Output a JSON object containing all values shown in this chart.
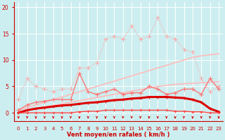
{
  "x": [
    0,
    1,
    2,
    3,
    4,
    5,
    6,
    7,
    8,
    9,
    10,
    11,
    12,
    13,
    14,
    15,
    16,
    17,
    18,
    19,
    20,
    21,
    22,
    23
  ],
  "series": [
    {
      "name": "max_gust_dotted",
      "y": [
        2.5,
        6.5,
        5.0,
        4.5,
        4.0,
        4.5,
        4.5,
        8.5,
        8.5,
        9.5,
        14.0,
        14.5,
        14.0,
        16.5,
        14.0,
        14.5,
        18.0,
        14.5,
        14.0,
        12.0,
        11.5,
        6.5,
        4.0,
        5.0
      ],
      "color": "#ffaaaa",
      "linewidth": 1.0,
      "marker": "+",
      "markersize": 4,
      "linestyle": ":"
    },
    {
      "name": "upper_envelope_smooth",
      "y": [
        0.5,
        1.0,
        1.5,
        2.0,
        2.5,
        3.0,
        3.5,
        4.0,
        4.5,
        5.0,
        5.5,
        6.0,
        6.5,
        7.0,
        7.5,
        8.0,
        8.5,
        9.0,
        9.5,
        10.0,
        10.5,
        10.8,
        11.0,
        11.2
      ],
      "color": "#ffbbbb",
      "linewidth": 1.2,
      "marker": null,
      "linestyle": "-"
    },
    {
      "name": "lower_envelope_smooth",
      "y": [
        0.2,
        0.5,
        0.8,
        1.1,
        1.4,
        1.7,
        2.0,
        2.3,
        2.6,
        2.9,
        3.2,
        3.5,
        3.8,
        4.1,
        4.4,
        4.7,
        5.0,
        5.2,
        5.4,
        5.5,
        5.6,
        5.7,
        5.8,
        5.9
      ],
      "color": "#ffbbbb",
      "linewidth": 1.2,
      "marker": null,
      "linestyle": "-"
    },
    {
      "name": "mean_gust_with_markers",
      "y": [
        0.5,
        1.5,
        2.0,
        2.2,
        2.5,
        2.5,
        2.5,
        7.5,
        4.0,
        3.5,
        4.0,
        4.5,
        3.5,
        3.8,
        3.8,
        5.0,
        4.5,
        3.5,
        3.8,
        4.5,
        4.5,
        3.5,
        6.5,
        4.5
      ],
      "color": "#ff7777",
      "linewidth": 1.0,
      "marker": "+",
      "markersize": 4,
      "linestyle": "-"
    },
    {
      "name": "mean_wind_bold",
      "y": [
        0.0,
        0.5,
        0.8,
        1.0,
        1.2,
        1.4,
        1.5,
        1.7,
        1.9,
        2.0,
        2.2,
        2.4,
        2.5,
        2.7,
        2.8,
        3.0,
        3.0,
        3.0,
        2.9,
        2.8,
        2.5,
        2.0,
        0.8,
        0.2
      ],
      "color": "#dd0000",
      "linewidth": 2.2,
      "marker": "+",
      "markersize": 3,
      "linestyle": "-"
    },
    {
      "name": "min_line",
      "y": [
        0.0,
        0.0,
        0.0,
        0.0,
        0.0,
        0.0,
        0.0,
        0.2,
        0.3,
        0.3,
        0.5,
        0.5,
        0.5,
        0.5,
        0.5,
        0.5,
        0.5,
        0.5,
        0.3,
        0.3,
        0.2,
        0.2,
        0.0,
        0.0
      ],
      "color": "#ff4444",
      "linewidth": 1.0,
      "marker": "+",
      "markersize": 3,
      "linestyle": "-"
    }
  ],
  "xlabel": "Vent moyen/en rafales ( km/h )",
  "yticks": [
    0,
    5,
    10,
    15,
    20
  ],
  "xticks": [
    0,
    1,
    2,
    3,
    4,
    5,
    6,
    7,
    8,
    9,
    10,
    11,
    12,
    13,
    14,
    15,
    16,
    17,
    18,
    19,
    20,
    21,
    22,
    23
  ],
  "ylim": [
    -1.5,
    21
  ],
  "xlim": [
    -0.5,
    23.5
  ],
  "bg_color": "#cdeef0",
  "grid_color": "#ffffff",
  "axis_color": "#cc0000",
  "xlabel_color": "#cc0000",
  "tick_color": "#cc0000"
}
